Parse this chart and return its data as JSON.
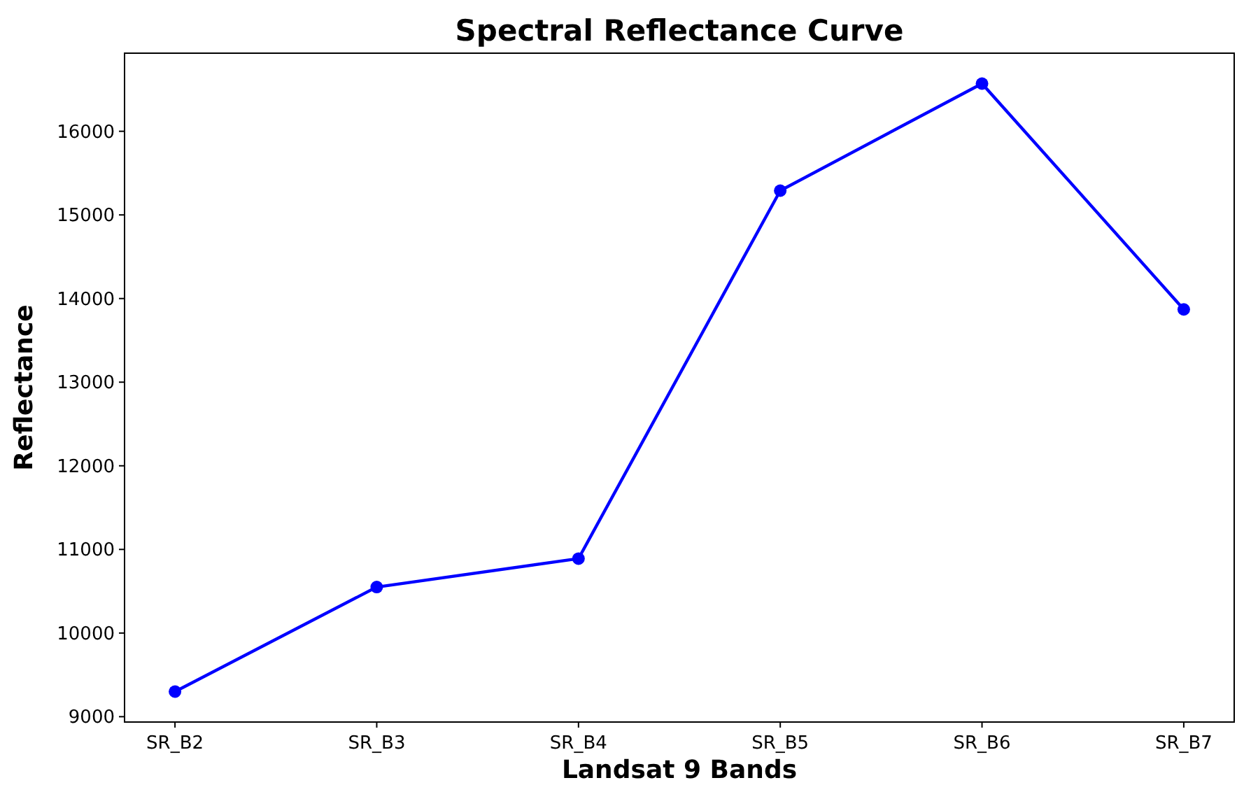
{
  "chart_data": {
    "type": "line",
    "title": "Spectral Reflectance Curve",
    "xlabel": "Landsat 9 Bands",
    "ylabel": "Reflectance",
    "categories": [
      "SR_B2",
      "SR_B3",
      "SR_B4",
      "SR_B5",
      "SR_B6",
      "SR_B7"
    ],
    "series": [
      {
        "color": "#0000ff",
        "values": [
          9300,
          10550,
          10890,
          15290,
          16570,
          13870
        ]
      }
    ],
    "ylim": [
      8936,
      16934
    ],
    "yticks": [
      9000,
      10000,
      11000,
      12000,
      13000,
      14000,
      15000,
      16000
    ],
    "marker": "circle",
    "line_style": "solid"
  }
}
